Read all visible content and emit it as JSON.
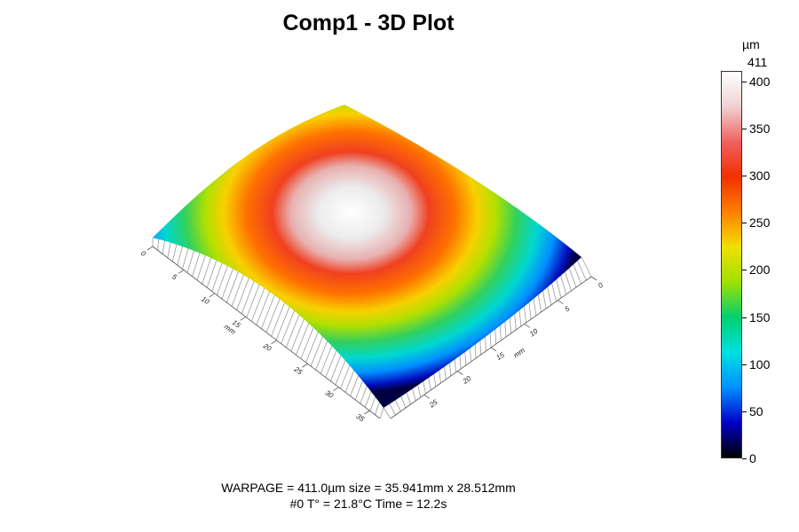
{
  "title": "Comp1 - 3D Plot",
  "colorbar": {
    "unit": "µm",
    "max_label": "411",
    "min": 0,
    "max": 411,
    "ticks": [
      "0",
      "50",
      "100",
      "150",
      "200",
      "250",
      "300",
      "350",
      "400"
    ],
    "colors": [
      "#000000",
      "#0000c8",
      "#0090ff",
      "#00e0e0",
      "#00d070",
      "#a0e000",
      "#f0e000",
      "#ff8000",
      "#f03000",
      "#f06060",
      "#f0d0d0",
      "#ffffff"
    ]
  },
  "info": {
    "line1": "WARPAGE = 411.0µm   size = 35.941mm x 28.512mm",
    "line2": "#0   T° = 21.8°C   Time = 12.2s"
  },
  "chart_data": {
    "type": "surface-3d",
    "title": "Comp1 - 3D Plot",
    "z_unit": "µm",
    "z_range": [
      0,
      411
    ],
    "x_axis": {
      "label": "mm",
      "ticks": [
        "0",
        "5",
        "10",
        "15",
        "20",
        "25",
        "30",
        "35"
      ]
    },
    "y_axis": {
      "label": "mm",
      "ticks": [
        "0",
        "5",
        "10",
        "15",
        "20",
        "25"
      ]
    },
    "warpage_um": 411.0,
    "size_mm": [
      35.941,
      28.512
    ]
  }
}
